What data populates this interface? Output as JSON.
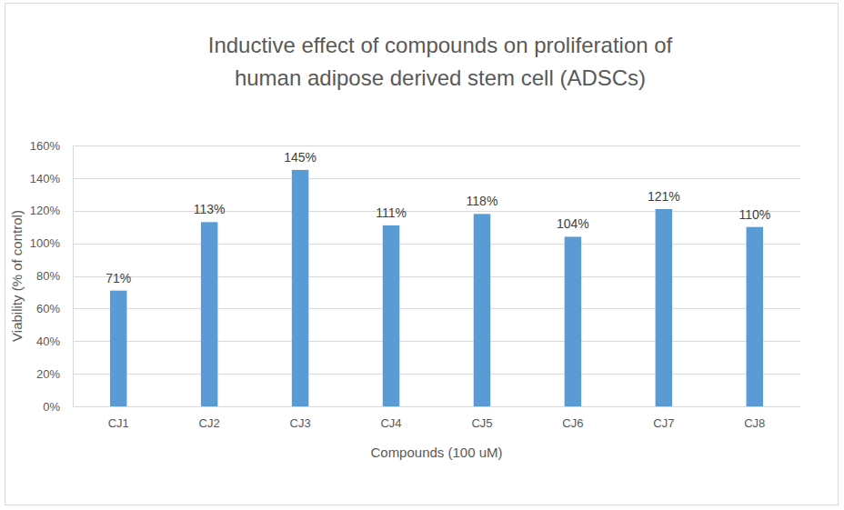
{
  "chart_data": {
    "type": "bar",
    "title": [
      "Inductive effect of compounds on proliferation of",
      "human adipose derived stem cell (ADSCs)"
    ],
    "x_label": "Compounds (100 uM)",
    "y_label": "Viability (% of control)",
    "categories": [
      "CJ1",
      "CJ2",
      "CJ3",
      "CJ4",
      "CJ5",
      "CJ6",
      "CJ7",
      "CJ8"
    ],
    "values": [
      71,
      113,
      145,
      111,
      118,
      104,
      121,
      110
    ],
    "value_labels": [
      "71%",
      "113%",
      "145%",
      "111%",
      "118%",
      "104%",
      "121%",
      "110%"
    ],
    "color": "#5b9bd5",
    "ylim": [
      0,
      160
    ],
    "yticks": [
      {
        "value": 0,
        "label": "0%"
      },
      {
        "value": 20,
        "label": "20%"
      },
      {
        "value": 40,
        "label": "40%"
      },
      {
        "value": 60,
        "label": "60%"
      },
      {
        "value": 80,
        "label": "80%"
      },
      {
        "value": 100,
        "label": "100%"
      },
      {
        "value": 120,
        "label": "120%"
      },
      {
        "value": 140,
        "label": "140%"
      },
      {
        "value": 160,
        "label": "160%"
      }
    ],
    "grid": true,
    "data_labels": true
  }
}
